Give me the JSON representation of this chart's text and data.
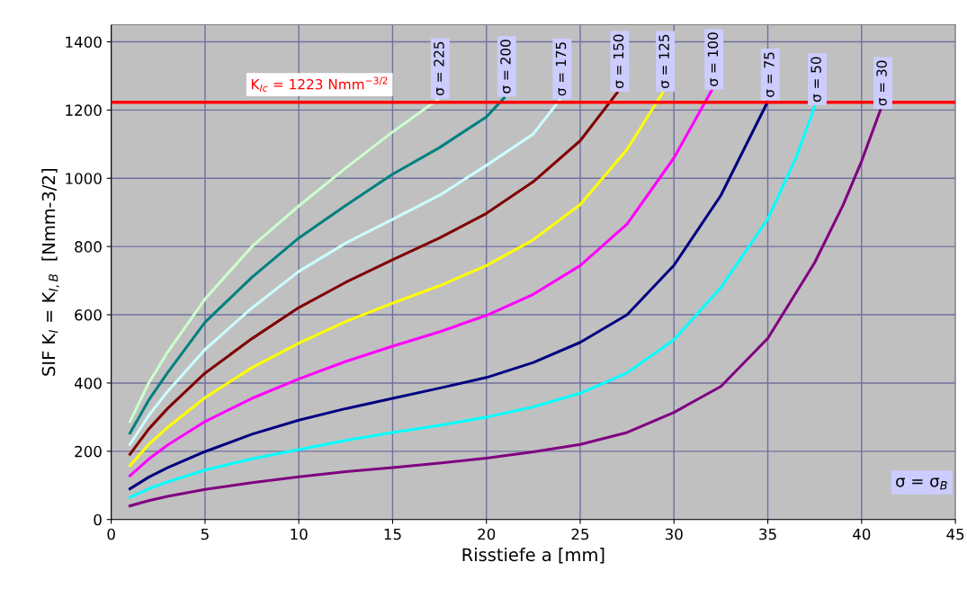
{
  "chart_data": {
    "type": "line",
    "xlabel": "Risstiefe a [mm]",
    "ylabel": "SIF K$_{I}$ = K$_{I,B}$  [Nmm-3/2]",
    "xlim": [
      0,
      45
    ],
    "ylim": [
      0,
      1450
    ],
    "xticks": [
      0,
      5,
      10,
      15,
      20,
      25,
      30,
      35,
      40,
      45
    ],
    "yticks": [
      0,
      200,
      400,
      600,
      800,
      1000,
      1200,
      1400
    ],
    "grid": true,
    "marker": "none",
    "line_style": "solid",
    "series": [
      {
        "name": "σ = 225",
        "color": "#ccffcc",
        "x": [
          1,
          2,
          3,
          5,
          7.5,
          10,
          12.5,
          15,
          17.4
        ],
        "values": [
          287,
          400,
          490,
          646,
          800,
          919,
          1030,
          1136,
          1230
        ]
      },
      {
        "name": "σ = 200",
        "color": "#008080",
        "x": [
          1,
          2,
          3,
          5,
          7.5,
          10,
          12.5,
          15,
          17.5,
          20,
          20.95
        ],
        "values": [
          253,
          350,
          430,
          578,
          710,
          825,
          920,
          1012,
          1090,
          1180,
          1236
        ]
      },
      {
        "name": "σ = 175",
        "color": "#ccffff",
        "x": [
          1,
          2,
          3,
          5,
          7.5,
          10,
          12.5,
          15,
          17.5,
          20,
          22.5,
          23.9
        ],
        "values": [
          220,
          305,
          375,
          498,
          620,
          727,
          810,
          880,
          950,
          1038,
          1130,
          1229
        ]
      },
      {
        "name": "σ = 150",
        "color": "#800000",
        "x": [
          1,
          2,
          3,
          5,
          7.5,
          10,
          12.5,
          15,
          17.5,
          20,
          22.5,
          25,
          26.97
        ],
        "values": [
          191,
          265,
          325,
          429,
          530,
          621,
          695,
          761,
          825,
          897,
          990,
          1110,
          1251
        ]
      },
      {
        "name": "σ = 125",
        "color": "#ffff00",
        "x": [
          1,
          2,
          3,
          5,
          7.5,
          10,
          12.5,
          15,
          17.5,
          20,
          22.5,
          25,
          27.5,
          29.4
        ],
        "values": [
          158,
          220,
          270,
          357,
          445,
          517,
          580,
          634,
          685,
          744,
          820,
          923,
          1085,
          1251
        ]
      },
      {
        "name": "σ = 100",
        "color": "#ff00ff",
        "x": [
          1,
          2,
          3,
          5,
          7.5,
          10,
          12.5,
          15,
          17.5,
          20,
          22.5,
          25,
          27.5,
          30,
          32
        ],
        "values": [
          128,
          177,
          218,
          287,
          355,
          412,
          463,
          508,
          550,
          598,
          660,
          744,
          866,
          1060,
          1257
        ]
      },
      {
        "name": "σ = 75",
        "color": "#000080",
        "x": [
          1,
          2,
          3,
          5,
          7.5,
          10,
          12.5,
          15,
          17.5,
          20,
          22.5,
          25,
          27.5,
          30,
          32.5,
          35
        ],
        "values": [
          90,
          124,
          152,
          199,
          250,
          291,
          325,
          355,
          385,
          416,
          460,
          519,
          600,
          745,
          950,
          1225
        ]
      },
      {
        "name": "σ = 50",
        "color": "#00ffff",
        "x": [
          1,
          2,
          3,
          5,
          7.5,
          10,
          12.5,
          15,
          17.5,
          20,
          22.5,
          25,
          27.5,
          30,
          32.5,
          35,
          36.5,
          37.5
        ],
        "values": [
          65,
          90,
          110,
          145,
          178,
          205,
          232,
          255,
          276,
          300,
          330,
          370,
          430,
          527,
          680,
          881,
          1060,
          1211
        ]
      },
      {
        "name": "σ = 30",
        "color": "#800080",
        "x": [
          1,
          2,
          3,
          5,
          7.5,
          10,
          12.5,
          15,
          17.5,
          20,
          22.5,
          25,
          27.5,
          30,
          32.5,
          35,
          37.5,
          39,
          40,
          41
        ],
        "values": [
          40,
          55,
          68,
          88,
          108,
          125,
          140,
          152,
          165,
          180,
          198,
          220,
          255,
          314,
          390,
          531,
          753,
          920,
          1050,
          1200
        ]
      }
    ],
    "ref_lines": [
      {
        "axis": "y",
        "value": 1223,
        "label": "K$_{Ic}$ = 1223 Nmm$^{−3/2}$",
        "color": "#ff0000"
      }
    ],
    "annotations": [
      "σ = σ$_{B}$"
    ]
  }
}
